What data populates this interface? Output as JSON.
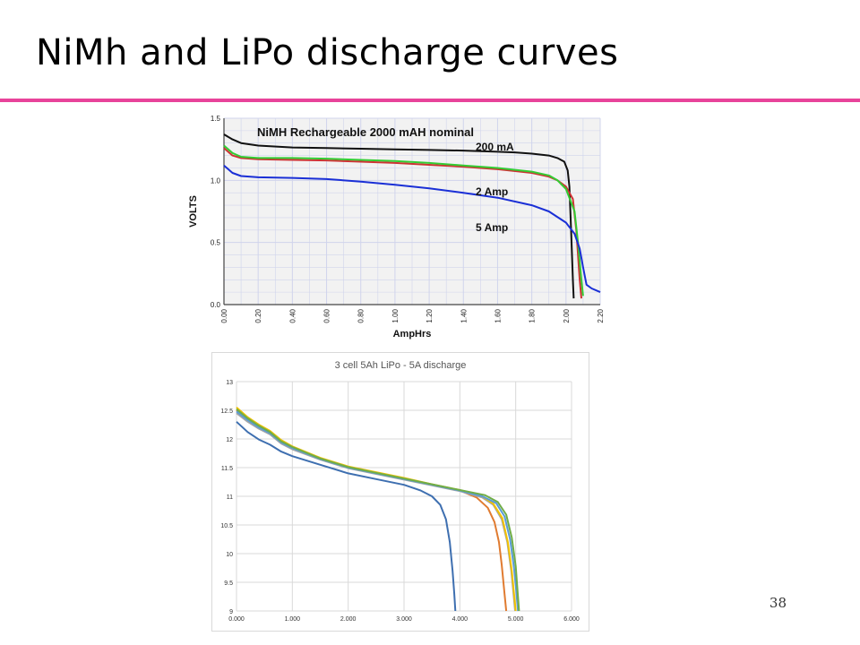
{
  "slide": {
    "title": "NiMh and LiPo discharge curves",
    "page_number": "38",
    "accent_color": "#e8439a"
  },
  "chart_data": [
    {
      "id": "nimh",
      "type": "line",
      "title": "NiMH Rechargeable 2000 mAH nominal",
      "xlabel": "AmpHrs",
      "ylabel": "VOLTS",
      "xlim": [
        0,
        2.2
      ],
      "ylim": [
        0,
        1.5
      ],
      "x_ticks": [
        0,
        0.2,
        0.4,
        0.6,
        0.8,
        1.0,
        1.2,
        1.4,
        1.6,
        1.8,
        2.0,
        2.2
      ],
      "x_tick_labels": [
        "0.00",
        "0.20",
        "0.40",
        "0.60",
        "0.80",
        "1.00",
        "1.20",
        "1.40",
        "1.60",
        "1.80",
        "2.00",
        "2.20"
      ],
      "y_ticks": [
        0,
        0.5,
        1.0,
        1.5
      ],
      "y_tick_labels": [
        "0.0",
        "0.5",
        "1.0",
        "1.5"
      ],
      "grid": true,
      "background": "#f2f2f2",
      "grid_color": "#d0d4ec",
      "series": [
        {
          "name": "200 mA",
          "color": "#111111",
          "x": [
            0,
            0.05,
            0.1,
            0.2,
            0.4,
            0.6,
            0.8,
            1.0,
            1.2,
            1.4,
            1.6,
            1.7,
            1.8,
            1.9,
            1.95,
            1.99,
            2.01,
            2.02,
            2.03,
            2.04,
            2.045
          ],
          "y": [
            1.37,
            1.33,
            1.3,
            1.28,
            1.265,
            1.26,
            1.255,
            1.25,
            1.245,
            1.24,
            1.23,
            1.225,
            1.215,
            1.2,
            1.18,
            1.15,
            1.08,
            0.95,
            0.6,
            0.2,
            0.05
          ]
        },
        {
          "name": "",
          "color": "#cc3333",
          "x": [
            0,
            0.05,
            0.1,
            0.2,
            0.4,
            0.6,
            0.8,
            1.0,
            1.2,
            1.4,
            1.6,
            1.8,
            1.9,
            1.95,
            2.0,
            2.04,
            2.06,
            2.08,
            2.09
          ],
          "y": [
            1.26,
            1.2,
            1.18,
            1.17,
            1.165,
            1.16,
            1.15,
            1.14,
            1.125,
            1.11,
            1.09,
            1.06,
            1.03,
            1.0,
            0.95,
            0.85,
            0.6,
            0.2,
            0.05
          ]
        },
        {
          "name": "2 Amp",
          "color": "#33cc33",
          "x": [
            0,
            0.05,
            0.1,
            0.2,
            0.4,
            0.6,
            0.8,
            1.0,
            1.2,
            1.4,
            1.6,
            1.8,
            1.9,
            1.95,
            2.0,
            2.05,
            2.07,
            2.09,
            2.1
          ],
          "y": [
            1.28,
            1.22,
            1.19,
            1.18,
            1.18,
            1.175,
            1.165,
            1.155,
            1.14,
            1.12,
            1.1,
            1.07,
            1.04,
            1.0,
            0.93,
            0.75,
            0.5,
            0.2,
            0.07
          ]
        },
        {
          "name": "5 Amp",
          "color": "#1a2fd6",
          "x": [
            0,
            0.05,
            0.1,
            0.2,
            0.4,
            0.6,
            0.8,
            1.0,
            1.2,
            1.4,
            1.6,
            1.8,
            1.9,
            2.0,
            2.05,
            2.08,
            2.1,
            2.12,
            2.15,
            2.2
          ],
          "y": [
            1.12,
            1.06,
            1.035,
            1.025,
            1.02,
            1.01,
            0.99,
            0.965,
            0.935,
            0.9,
            0.86,
            0.8,
            0.75,
            0.66,
            0.57,
            0.45,
            0.3,
            0.16,
            0.13,
            0.1
          ]
        }
      ]
    },
    {
      "id": "lipo",
      "type": "line",
      "title": "3 cell 5Ah LiPo - 5A discharge",
      "xlabel": "",
      "ylabel": "",
      "xlim": [
        0,
        6
      ],
      "ylim": [
        9,
        13
      ],
      "x_ticks": [
        0,
        1,
        2,
        3,
        4,
        5,
        6
      ],
      "x_tick_labels": [
        "0.000",
        "1.000",
        "2.000",
        "3.000",
        "4.000",
        "5.000",
        "6.000"
      ],
      "y_ticks": [
        9,
        9.5,
        10,
        10.5,
        11,
        11.5,
        12,
        12.5,
        13
      ],
      "y_tick_labels": [
        "9",
        "9.5",
        "10",
        "10.5",
        "11",
        "11.5",
        "12",
        "12.5",
        "13"
      ],
      "grid": true,
      "background": "#ffffff",
      "grid_color": "#d9d9d9",
      "series": [
        {
          "name": "",
          "color": "#3e6fb0",
          "x": [
            0,
            0.2,
            0.4,
            0.6,
            0.8,
            1.0,
            1.5,
            2.0,
            2.5,
            3.0,
            3.3,
            3.5,
            3.65,
            3.75,
            3.82,
            3.87,
            3.9,
            3.92
          ],
          "y": [
            12.3,
            12.12,
            11.99,
            11.9,
            11.78,
            11.7,
            11.55,
            11.4,
            11.3,
            11.2,
            11.1,
            11.0,
            10.85,
            10.6,
            10.2,
            9.7,
            9.3,
            9.0
          ]
        },
        {
          "name": "",
          "color": "#e07b30",
          "x": [
            0,
            0.2,
            0.4,
            0.6,
            0.8,
            1.0,
            1.5,
            2.0,
            2.5,
            3.0,
            3.5,
            4.0,
            4.3,
            4.5,
            4.62,
            4.7,
            4.75,
            4.8,
            4.83
          ],
          "y": [
            12.5,
            12.35,
            12.22,
            12.12,
            11.95,
            11.85,
            11.65,
            11.5,
            11.4,
            11.3,
            11.2,
            11.1,
            10.98,
            10.8,
            10.55,
            10.2,
            9.8,
            9.3,
            9.0
          ]
        },
        {
          "name": "",
          "color": "#a5a5a5",
          "x": [
            0,
            0.2,
            0.4,
            0.6,
            0.8,
            1.0,
            1.5,
            2.0,
            2.5,
            3.0,
            3.5,
            4.0,
            4.4,
            4.6,
            4.75,
            4.85,
            4.92,
            4.96,
            4.99
          ],
          "y": [
            12.45,
            12.3,
            12.18,
            12.08,
            11.92,
            11.82,
            11.64,
            11.49,
            11.39,
            11.29,
            11.19,
            11.09,
            10.98,
            10.85,
            10.6,
            10.2,
            9.7,
            9.3,
            9.0
          ]
        },
        {
          "name": "",
          "color": "#f2c200",
          "x": [
            0,
            0.2,
            0.4,
            0.6,
            0.8,
            1.0,
            1.5,
            2.0,
            2.5,
            3.0,
            3.5,
            4.0,
            4.4,
            4.6,
            4.76,
            4.86,
            4.93,
            4.97,
            5.0
          ],
          "y": [
            12.55,
            12.38,
            12.25,
            12.14,
            11.98,
            11.87,
            11.67,
            11.52,
            11.42,
            11.32,
            11.21,
            11.11,
            11.0,
            10.87,
            10.62,
            10.2,
            9.7,
            9.3,
            9.0
          ]
        },
        {
          "name": "",
          "color": "#5b9bd5",
          "x": [
            0,
            0.2,
            0.4,
            0.6,
            0.8,
            1.0,
            1.5,
            2.0,
            2.5,
            3.0,
            3.5,
            4.0,
            4.4,
            4.65,
            4.8,
            4.9,
            4.97,
            5.01,
            5.04
          ],
          "y": [
            12.48,
            12.33,
            12.2,
            12.1,
            11.94,
            11.84,
            11.65,
            11.5,
            11.4,
            11.3,
            11.2,
            11.1,
            11.0,
            10.88,
            10.65,
            10.25,
            9.75,
            9.35,
            9.0
          ]
        },
        {
          "name": "",
          "color": "#70ad47",
          "x": [
            0,
            0.2,
            0.4,
            0.6,
            0.8,
            1.0,
            1.5,
            2.0,
            2.5,
            3.0,
            3.5,
            4.0,
            4.45,
            4.68,
            4.83,
            4.93,
            5.0,
            5.03,
            5.06
          ],
          "y": [
            12.52,
            12.36,
            12.23,
            12.12,
            11.96,
            11.86,
            11.66,
            11.51,
            11.41,
            11.31,
            11.21,
            11.11,
            11.02,
            10.9,
            10.68,
            10.28,
            9.78,
            9.4,
            9.0
          ]
        }
      ]
    }
  ]
}
